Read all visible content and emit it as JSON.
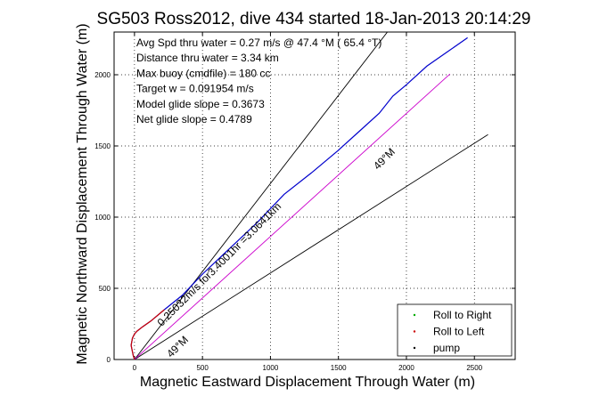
{
  "chart_data": {
    "type": "line",
    "title": "SG503 Ross2012, dive 434 started 18-Jan-2013 20:14:29",
    "xlabel": "Magnetic Eastward Displacement Through Water (m)",
    "ylabel": "Magnetic Northward Displacement Through Water (m)",
    "xlim": [
      -150,
      2800
    ],
    "ylim": [
      0,
      2300
    ],
    "xticks": [
      0,
      500,
      1000,
      1500,
      2000,
      2500
    ],
    "yticks": [
      0,
      500,
      1000,
      1500,
      2000
    ],
    "grid": true,
    "info_lines": [
      "Avg Spd thru water =  0.27 m/s @  47.4    °M ( 65.4 °T)",
      "Distance thru water =  3.34 km",
      "Max buoy (cmdfile) = 180 cc",
      "Target w = 0.091954 m/s",
      "Model glide slope = 0.3673",
      "Net glide slope = 0.4789"
    ],
    "annotations": [
      {
        "text": "0.25032m/s for3.4001hr =3.0641km",
        "x": 200,
        "y": 230,
        "angle_deg": -45
      },
      {
        "text": "49°M",
        "x": 1790,
        "y": 1330,
        "angle_deg": -45
      },
      {
        "text": "49°M",
        "x": 270,
        "y": 10,
        "angle_deg": -45
      }
    ],
    "reference_lines": [
      {
        "x": [
          0,
          1860
        ],
        "y": [
          0,
          2300
        ],
        "color": "#000000"
      },
      {
        "x": [
          0,
          2600
        ],
        "y": [
          0,
          1580
        ],
        "color": "#000000"
      },
      {
        "x": [
          0,
          2320
        ],
        "y": [
          0,
          2005
        ],
        "color": "#cc00cc"
      }
    ],
    "series": [
      {
        "name": "",
        "color": "#0000cc",
        "x": [
          0,
          -10,
          -25,
          -15,
          0,
          20,
          60,
          120,
          220,
          350,
          500,
          700,
          900,
          1100,
          1300,
          1500,
          1650,
          1800,
          1900,
          2000,
          2150,
          2300,
          2450
        ],
        "y": [
          0,
          30,
          100,
          150,
          180,
          200,
          230,
          270,
          350,
          450,
          600,
          780,
          960,
          1160,
          1310,
          1470,
          1600,
          1730,
          1850,
          1930,
          2060,
          2160,
          2260
        ]
      },
      {
        "name": "",
        "color": "#cc0000",
        "x": [
          0,
          -10,
          -25,
          -15,
          0,
          20,
          60,
          120,
          220
        ],
        "y": [
          0,
          30,
          100,
          150,
          180,
          200,
          230,
          270,
          350
        ]
      }
    ],
    "legend": {
      "position": "bottom-right",
      "entries": [
        {
          "label": "Roll to Right",
          "color": "#00aa00"
        },
        {
          "label": "Roll to Left",
          "color": "#cc0000"
        },
        {
          "label": "pump",
          "color": "#000000"
        }
      ]
    }
  }
}
